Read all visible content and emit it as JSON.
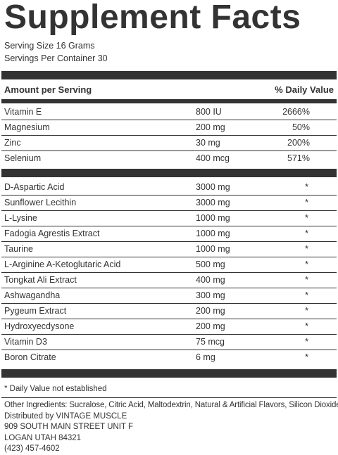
{
  "panel": {
    "title": "Supplement Facts",
    "serving_size": "Serving Size 16 Grams",
    "servings_per_container": "Servings Per Container 30",
    "amount_header": "Amount per Serving",
    "dv_header": "% Daily Value"
  },
  "vitamins": [
    {
      "name": "Vitamin E",
      "amount": "800 IU",
      "dv": "2666%"
    },
    {
      "name": "Magnesium",
      "amount": "200 mg",
      "dv": "50%"
    },
    {
      "name": "Zinc",
      "amount": "30 mg",
      "dv": "200%"
    },
    {
      "name": "Selenium",
      "amount": "400 mcg",
      "dv": "571%"
    }
  ],
  "ingredients": [
    {
      "name": "D-Aspartic Acid",
      "amount": "3000 mg",
      "dv": "*"
    },
    {
      "name": "Sunflower Lecithin",
      "amount": "3000 mg",
      "dv": "*"
    },
    {
      "name": "L-Lysine",
      "amount": "1000 mg",
      "dv": "*"
    },
    {
      "name": "Fadogia Agrestis Extract",
      "amount": "1000 mg",
      "dv": "*"
    },
    {
      "name": "Taurine",
      "amount": "1000 mg",
      "dv": "*"
    },
    {
      "name": "L-Arginine A-Ketoglutaric Acid",
      "amount": "500 mg",
      "dv": "*"
    },
    {
      "name": "Tongkat Ali Extract",
      "amount": "400 mg",
      "dv": "*"
    },
    {
      "name": "Ashwagandha",
      "amount": "300 mg",
      "dv": "*"
    },
    {
      "name": "Pygeum Extract",
      "amount": "200 mg",
      "dv": "*"
    },
    {
      "name": "Hydroxyecdysone",
      "amount": "200 mg",
      "dv": "*"
    },
    {
      "name": "Vitamin D3",
      "amount": "75 mcg",
      "dv": "*"
    },
    {
      "name": "Boron Citrate",
      "amount": "6 mg",
      "dv": "*"
    }
  ],
  "footer": {
    "dv_note": "* Daily Value not established",
    "other_ingredients": "Other Ingredients: Sucralose, Citric Acid, Maltodextrin, Natural & Artificial Flavors, Silicon Dioxide",
    "distributor": "Distributed by VINTAGE MUSCLE",
    "address_line1": "909 SOUTH MAIN STREET UNIT F",
    "address_line2": "LOGAN UTAH 84321",
    "phone": "(423) 457-4602"
  }
}
